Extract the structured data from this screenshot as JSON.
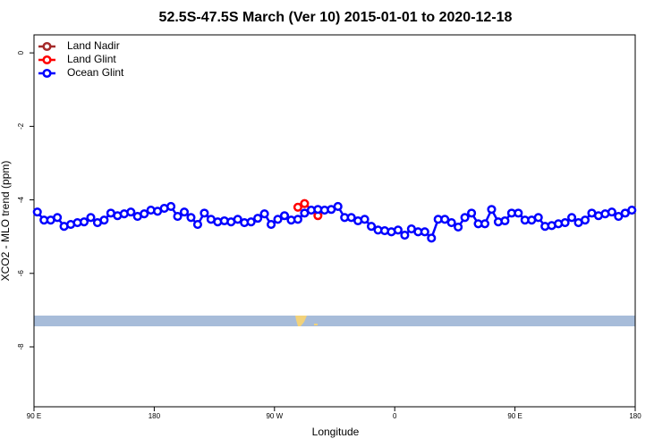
{
  "chart_data": {
    "type": "line",
    "title": "52.5S-47.5S March (Ver 10)   2015-01-01 to 2020-12-18",
    "x_label": "Longitude",
    "y_label": "XCO2 - MLO trend (ppm)",
    "xlim": [
      90,
      540
    ],
    "ylim": [
      -9.63,
      0.49
    ],
    "xticks": [
      {
        "value": 90,
        "label": "90 E"
      },
      180,
      {
        "value": 270,
        "label": "90 W"
      },
      {
        "value": 360,
        "label": "0"
      },
      {
        "value": 450,
        "label": "90 E"
      },
      {
        "value": 540,
        "label": "180"
      }
    ],
    "yticks": [
      0,
      -2,
      -4,
      -6,
      -8
    ],
    "legend": "top-left",
    "series": [
      {
        "name": "Land Nadir",
        "color": "#a52a2a",
        "x": [],
        "values": []
      },
      {
        "name": "Land Glint",
        "color": "#ff0000",
        "x": [
          287.5,
          292.5,
          302.5
        ],
        "values": [
          -4.2,
          -4.1,
          -4.43
        ]
      },
      {
        "name": "Ocean Glint",
        "color": "#0000ff",
        "x": [
          92.5,
          97.5,
          102.5,
          107.5,
          112.5,
          117.5,
          122.5,
          127.5,
          132.5,
          137.5,
          142.5,
          147.5,
          152.5,
          157.5,
          162.5,
          167.5,
          172.5,
          177.5,
          182.5,
          187.5,
          192.5,
          197.5,
          202.5,
          207.5,
          212.5,
          217.5,
          222.5,
          227.5,
          232.5,
          237.5,
          242.5,
          247.5,
          252.5,
          257.5,
          262.5,
          267.5,
          272.5,
          277.5,
          282.5,
          287.5,
          292.5,
          297.5,
          302.5,
          307.5,
          312.5,
          317.5,
          322.5,
          327.5,
          332.5,
          337.5,
          342.5,
          347.5,
          352.5,
          357.5,
          362.5,
          367.5,
          372.5,
          377.5,
          382.5,
          387.5,
          392.5,
          397.5,
          402.5,
          407.5,
          412.5,
          417.5,
          422.5,
          427.5,
          432.5,
          437.5,
          442.5,
          447.5,
          452.5,
          457.5,
          462.5,
          467.5,
          472.5,
          477.5,
          482.5,
          487.5,
          492.5,
          497.5,
          502.5,
          507.5,
          512.5,
          517.5,
          522.5,
          527.5,
          532.5,
          537.5
        ],
        "values": [
          -4.33,
          -4.55,
          -4.55,
          -4.48,
          -4.72,
          -4.67,
          -4.62,
          -4.6,
          -4.48,
          -4.62,
          -4.55,
          -4.36,
          -4.43,
          -4.38,
          -4.33,
          -4.45,
          -4.38,
          -4.28,
          -4.31,
          -4.23,
          -4.18,
          -4.45,
          -4.33,
          -4.48,
          -4.67,
          -4.36,
          -4.53,
          -4.6,
          -4.57,
          -4.6,
          -4.53,
          -4.62,
          -4.6,
          -4.5,
          -4.38,
          -4.67,
          -4.53,
          -4.43,
          -4.55,
          -4.53,
          -4.36,
          -4.28,
          -4.26,
          -4.28,
          -4.26,
          -4.18,
          -4.48,
          -4.48,
          -4.57,
          -4.53,
          -4.72,
          -4.82,
          -4.84,
          -4.87,
          -4.82,
          -4.96,
          -4.79,
          -4.87,
          -4.87,
          -5.04,
          -4.53,
          -4.53,
          -4.62,
          -4.74,
          -4.48,
          -4.36,
          -4.65,
          -4.65,
          -4.26,
          -4.6,
          -4.57,
          -4.36,
          -4.36,
          -4.55,
          -4.55,
          -4.48,
          -4.72,
          -4.7,
          -4.65,
          -4.62,
          -4.48,
          -4.62,
          -4.55,
          -4.36,
          -4.43,
          -4.38,
          -4.33,
          -4.45,
          -4.36,
          -4.28
        ]
      }
    ]
  }
}
